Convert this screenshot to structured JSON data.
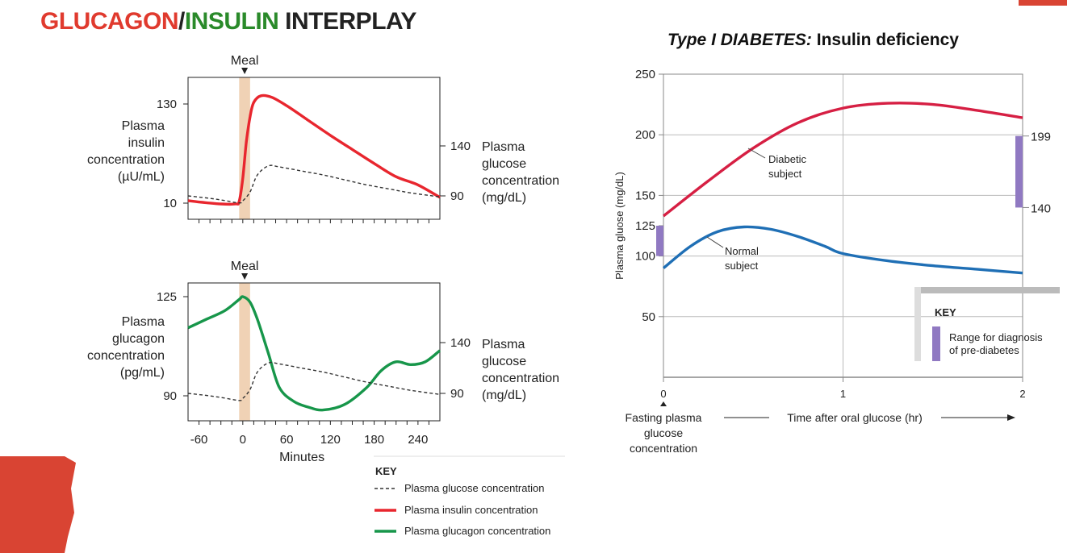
{
  "title": {
    "glucagon": "GLUCAGON",
    "slash": "/",
    "insulin": "INSULIN",
    "rest": " INTERPLAY"
  },
  "right_title": {
    "italic": "Type I DIABETES:",
    "rest": " Insulin deficiency"
  },
  "colors": {
    "glucagon_title": "#e03a2e",
    "insulin_title": "#2a8a2a",
    "insulin_line": "#e8262e",
    "glucagon_line": "#17964a",
    "diabetic_line": "#d61f43",
    "normal_line": "#1f6fb5",
    "meal_band": "#f0d2b5",
    "range_bar": "#9079c2"
  },
  "chart_data": [
    {
      "type": "line",
      "meal_label": "Meal",
      "left_axis": {
        "label_lines": [
          "Plasma",
          "insulin",
          "concentration",
          "(µU/mL)"
        ],
        "ticks": [
          {
            "v": 130,
            "label": "130"
          },
          {
            "v": 10,
            "label": "10"
          }
        ]
      },
      "right_axis": {
        "label_lines": [
          "Plasma",
          "glucose",
          "concentration",
          "(mg/dL)"
        ],
        "ticks": [
          {
            "v": 140,
            "label": "140"
          },
          {
            "v": 90,
            "label": "90"
          }
        ]
      },
      "xlim": [
        -75,
        270
      ],
      "meal_window": [
        -5,
        10
      ],
      "series": [
        {
          "name": "Plasma insulin concentration",
          "axis": "left",
          "x": [
            -75,
            -55,
            -30,
            -10,
            -5,
            0,
            5,
            10,
            15,
            25,
            40,
            60,
            90,
            120,
            150,
            180,
            210,
            240,
            270
          ],
          "y": [
            13,
            11,
            9,
            9,
            12,
            40,
            85,
            115,
            132,
            140,
            138,
            128,
            110,
            92,
            75,
            58,
            42,
            32,
            17
          ]
        },
        {
          "name": "Plasma glucose concentration",
          "axis": "right",
          "x": [
            -75,
            -50,
            -30,
            -5,
            0,
            10,
            20,
            35,
            50,
            80,
            110,
            140,
            170,
            200,
            230,
            270
          ],
          "y": [
            90,
            88,
            86,
            83,
            85,
            94,
            111,
            120,
            119,
            115,
            111,
            106,
            101,
            97,
            93,
            89
          ]
        }
      ]
    },
    {
      "type": "line",
      "meal_label": "Meal",
      "left_axis": {
        "label_lines": [
          "Plasma",
          "glucagon",
          "concentration",
          "(pg/mL)"
        ],
        "ticks": [
          {
            "v": 125,
            "label": "125"
          },
          {
            "v": 90,
            "label": "90"
          }
        ]
      },
      "right_axis": {
        "label_lines": [
          "Plasma",
          "glucose",
          "concentration",
          "(mg/dL)"
        ],
        "ticks": [
          {
            "v": 140,
            "label": "140"
          },
          {
            "v": 90,
            "label": "90"
          }
        ]
      },
      "xlim": [
        -75,
        270
      ],
      "meal_window": [
        -5,
        10
      ],
      "x_ticks": [
        {
          "v": -60,
          "label": "-60"
        },
        {
          "v": 0,
          "label": "0"
        },
        {
          "v": 60,
          "label": "60"
        },
        {
          "v": 120,
          "label": "120"
        },
        {
          "v": 180,
          "label": "180"
        },
        {
          "v": 240,
          "label": "240"
        }
      ],
      "xlabel": "Minutes",
      "series": [
        {
          "name": "Plasma glucagon concentration",
          "axis": "left",
          "x": [
            -75,
            -50,
            -25,
            -5,
            0,
            10,
            20,
            35,
            50,
            70,
            90,
            110,
            140,
            170,
            190,
            210,
            230,
            250,
            270
          ],
          "y": [
            114,
            117,
            120,
            124,
            125,
            123,
            117,
            105,
            93,
            88,
            86,
            85,
            87,
            93,
            99,
            102,
            101,
            102,
            106
          ]
        },
        {
          "name": "Plasma glucose concentration",
          "axis": "right",
          "x": [
            -75,
            -50,
            -30,
            -5,
            0,
            10,
            20,
            35,
            50,
            80,
            110,
            140,
            170,
            200,
            230,
            270
          ],
          "y": [
            90,
            88,
            86,
            83,
            85,
            94,
            111,
            120,
            119,
            115,
            111,
            106,
            101,
            97,
            93,
            89
          ]
        }
      ],
      "key": {
        "title": "KEY",
        "entries": [
          {
            "style": "dashed",
            "label": "Plasma glucose concentration"
          },
          {
            "style": "red",
            "label": "Plasma insulin concentration"
          },
          {
            "style": "green",
            "label": "Plasma glucagon concentration"
          }
        ]
      }
    },
    {
      "type": "line",
      "title": "Type I DIABETES: Insulin deficiency",
      "ylabel": "Plasma gluose (mg/dL)",
      "ylim": [
        0,
        250
      ],
      "xlim": [
        0,
        2
      ],
      "y_ticks": [
        {
          "v": 250,
          "label": "250"
        },
        {
          "v": 200,
          "label": "200"
        },
        {
          "v": 150,
          "label": "150"
        },
        {
          "v": 125,
          "label": "125"
        },
        {
          "v": 100,
          "label": "100"
        },
        {
          "v": 50,
          "label": "50"
        }
      ],
      "x_ticks": [
        {
          "v": 0,
          "label": "0"
        },
        {
          "v": 1,
          "label": "1"
        },
        {
          "v": 2,
          "label": "2"
        }
      ],
      "grid_y": [
        200,
        150,
        100,
        50
      ],
      "grid_x": [
        1
      ],
      "xlabel": "Time after oral glucose (hr)",
      "fasting_label_lines": [
        "Fasting plasma",
        "glucose",
        "concentration"
      ],
      "pre_diabetes_ranges": [
        {
          "lo": 100,
          "hi": 125,
          "side": "left"
        },
        {
          "lo": 140,
          "hi": 199,
          "side": "right"
        }
      ],
      "right_marks": [
        {
          "v": 199,
          "label": "199"
        },
        {
          "v": 140,
          "label": "140"
        }
      ],
      "series": [
        {
          "name": "Diabetic subject",
          "label_lines": [
            "Diabetic",
            "subject"
          ],
          "x": [
            0,
            0.25,
            0.5,
            0.75,
            1.0,
            1.25,
            1.5,
            1.75,
            2.0
          ],
          "y": [
            133,
            162,
            189,
            210,
            222,
            226,
            225,
            220,
            214
          ]
        },
        {
          "name": "Normal subject",
          "label_lines": [
            "Normal",
            "subject"
          ],
          "x": [
            0,
            0.15,
            0.3,
            0.45,
            0.6,
            0.75,
            0.9,
            1.0,
            1.25,
            1.5,
            1.75,
            2.0
          ],
          "y": [
            90,
            108,
            120,
            124,
            122,
            116,
            108,
            102,
            96,
            92,
            89,
            86
          ]
        }
      ],
      "key": {
        "title": "KEY",
        "entries": [
          {
            "label_lines": [
              "Range for diagnosis",
              "of pre-diabetes"
            ]
          }
        ]
      }
    }
  ]
}
